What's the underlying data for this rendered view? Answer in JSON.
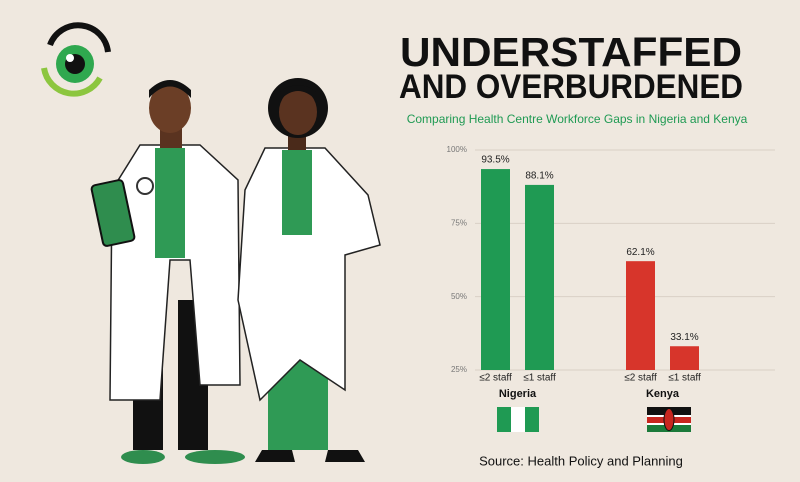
{
  "chart_data": {
    "type": "bar",
    "title": [
      "UNDERSTAFFED",
      "AND OVERBURDENED"
    ],
    "subtitle": "Comparing Health Centre Workforce Gaps in Nigeria and Kenya",
    "source": "Source: Health Policy and Planning",
    "ylim": [
      25,
      100
    ],
    "yticks": [
      {
        "value": 25,
        "label": "25%"
      },
      {
        "value": 50,
        "label": "50%"
      },
      {
        "value": 75,
        "label": "75%"
      },
      {
        "value": 100,
        "label": "100%"
      }
    ],
    "grid": true,
    "groups": [
      {
        "name": "Nigeria",
        "color": "#1f9a53",
        "categories": [
          "≤2 staff",
          "≤1 staff"
        ],
        "values": [
          93.5,
          88.1
        ],
        "value_labels": [
          "93.5%",
          "88.1%"
        ]
      },
      {
        "name": "Kenya",
        "color": "#d7352b",
        "categories": [
          "≤2 staff",
          "≤1 staff"
        ],
        "values": [
          62.1,
          33.1
        ],
        "value_labels": [
          "62.1%",
          "33.1%"
        ]
      }
    ]
  }
}
